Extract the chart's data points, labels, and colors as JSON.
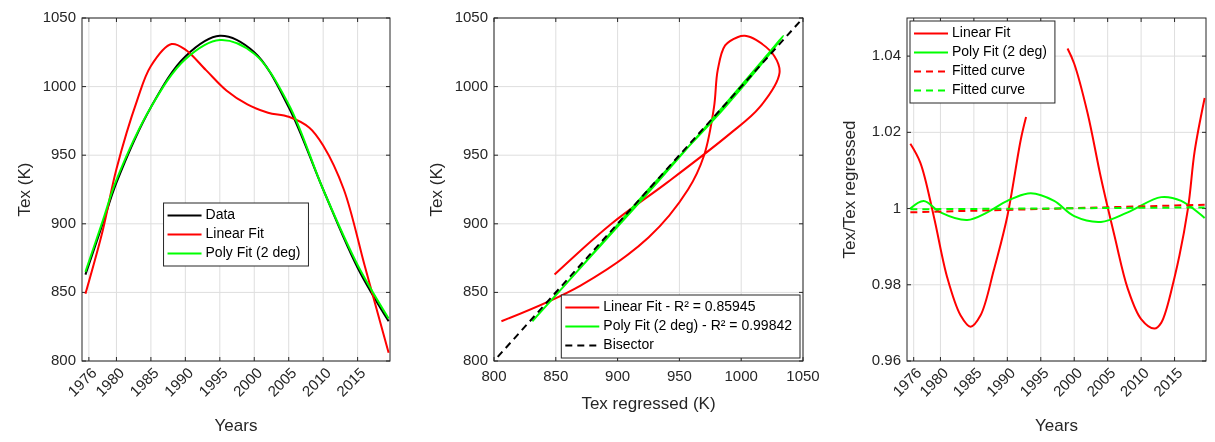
{
  "chart_data": [
    {
      "type": "line",
      "xlabel": "Years",
      "ylabel": "Tex (K)",
      "xlim": [
        1975,
        2019.7
      ],
      "xticks": [
        1976,
        1980,
        1985,
        1990,
        1995,
        2000,
        2005,
        2010,
        2015
      ],
      "ylim": [
        800,
        1050
      ],
      "yticks": [
        800,
        850,
        900,
        950,
        1000,
        1050
      ],
      "grid": true,
      "legend": "center",
      "series": [
        {
          "name": "Data",
          "color": "#000000",
          "x": [
            1975.5,
            1978,
            1980,
            1985,
            1990,
            1995,
            2000,
            2005,
            2010,
            2015,
            2019.5
          ],
          "values": [
            863,
            900,
            930,
            985,
            1022,
            1037,
            1025,
            985,
            925,
            868,
            829
          ]
        },
        {
          "name": "Linear Fit",
          "color": "#ff0000",
          "x": [
            1975.5,
            1978,
            1980,
            1983,
            1985,
            1988,
            1990,
            1993,
            1996,
            1999,
            2002,
            2005,
            2008,
            2010,
            2013,
            2016,
            2019.5
          ],
          "values": [
            849,
            895,
            940,
            990,
            1015,
            1031,
            1027,
            1012,
            997,
            987,
            981,
            978,
            970,
            957,
            925,
            870,
            806
          ]
        },
        {
          "name": "Poly Fit (2 deg)",
          "color": "#00ff00",
          "x": [
            1975.5,
            1978,
            1980,
            1985,
            1990,
            1995,
            2000,
            2005,
            2010,
            2015,
            2019.5
          ],
          "values": [
            865,
            902,
            932,
            985,
            1020,
            1034,
            1024,
            987,
            925,
            870,
            831
          ]
        }
      ]
    },
    {
      "type": "line",
      "xlabel": "Tex regressed (K)",
      "ylabel": "Tex (K)",
      "xlim": [
        800,
        1050
      ],
      "xticks": [
        800,
        850,
        900,
        950,
        1000,
        1050
      ],
      "ylim": [
        800,
        1050
      ],
      "yticks": [
        800,
        850,
        900,
        950,
        1000,
        1050
      ],
      "grid": true,
      "legend": "bottom right",
      "series": [
        {
          "name": "Linear Fit - R² = 0.85945",
          "color": "#ff0000",
          "x": [
            849,
            895,
            940,
            990,
            1015,
            1031,
            1027,
            1012,
            1003,
            997,
            987,
            981,
            978,
            970,
            957,
            925,
            870,
            806
          ],
          "values": [
            863,
            900,
            930,
            965,
            985,
            1010,
            1022,
            1034,
            1037,
            1036,
            1030,
            1012,
            985,
            950,
            925,
            890,
            855,
            829
          ]
        },
        {
          "name": "Poly Fit (2 deg) - R² = 0.99842",
          "color": "#00ff00",
          "x": [
            865,
            902,
            932,
            985,
            1020,
            1034,
            1024,
            987,
            925,
            870,
            831
          ],
          "values": [
            863,
            900,
            930,
            985,
            1022,
            1037,
            1025,
            985,
            925,
            868,
            829
          ]
        },
        {
          "name": "Bisector",
          "color": "#000000",
          "line_style": "dashed",
          "x": [
            803,
            1050
          ],
          "values": [
            803,
            1050
          ]
        }
      ]
    },
    {
      "type": "line",
      "xlabel": "Years",
      "ylabel": "Tex/Tex regressed",
      "xlim": [
        1975,
        2019.7
      ],
      "xticks": [
        1976,
        1980,
        1985,
        1990,
        1995,
        2000,
        2005,
        2010,
        2015
      ],
      "ylim": [
        0.96,
        1.05
      ],
      "yticks": [
        0.96,
        0.98,
        1,
        1.02,
        1.04
      ],
      "grid": true,
      "legend": "top left",
      "series": [
        {
          "name": "Linear Fit",
          "color": "#ff0000",
          "x": [
            1975.5,
            1977,
            1979,
            1981,
            1983,
            1984.5,
            1986,
            1988,
            1990,
            1992,
            1992.8,
            1995,
            1997,
            1999,
            2000,
            2002,
            2004,
            2006,
            2008,
            2010,
            2012,
            2013,
            2015,
            2017,
            2018,
            2019.5
          ],
          "values": [
            1.017,
            1.012,
            0.998,
            0.982,
            0.972,
            0.969,
            0.972,
            0.984,
            0.998,
            1.018,
            1.024,
            null,
            null,
            1.042,
            1.038,
            1.025,
            1.008,
            0.993,
            0.979,
            0.971,
            0.9685,
            0.97,
            0.982,
            1.0,
            1.015,
            1.029
          ]
        },
        {
          "name": "Poly Fit (2 deg)",
          "color": "#00ff00",
          "x": [
            1975.5,
            1977.5,
            1980,
            1984,
            1987,
            1990,
            1993.5,
            1997,
            2000,
            2004,
            2008,
            2013,
            2016,
            2019.5
          ],
          "values": [
            1.0,
            1.002,
            0.999,
            0.997,
            0.999,
            1.002,
            1.004,
            1.002,
            0.998,
            0.9965,
            0.999,
            1.003,
            1.002,
            0.9975
          ]
        },
        {
          "name": "Fitted curve",
          "color": "#ff0000",
          "line_style": "dashed",
          "x": [
            1975.5,
            2019.5
          ],
          "values": [
            0.999,
            1.001
          ]
        },
        {
          "name": "Fitted curve",
          "color": "#00ff00",
          "line_style": "dashed",
          "x": [
            1975.5,
            2019.5
          ],
          "values": [
            0.9998,
            1.0003
          ]
        }
      ]
    }
  ]
}
